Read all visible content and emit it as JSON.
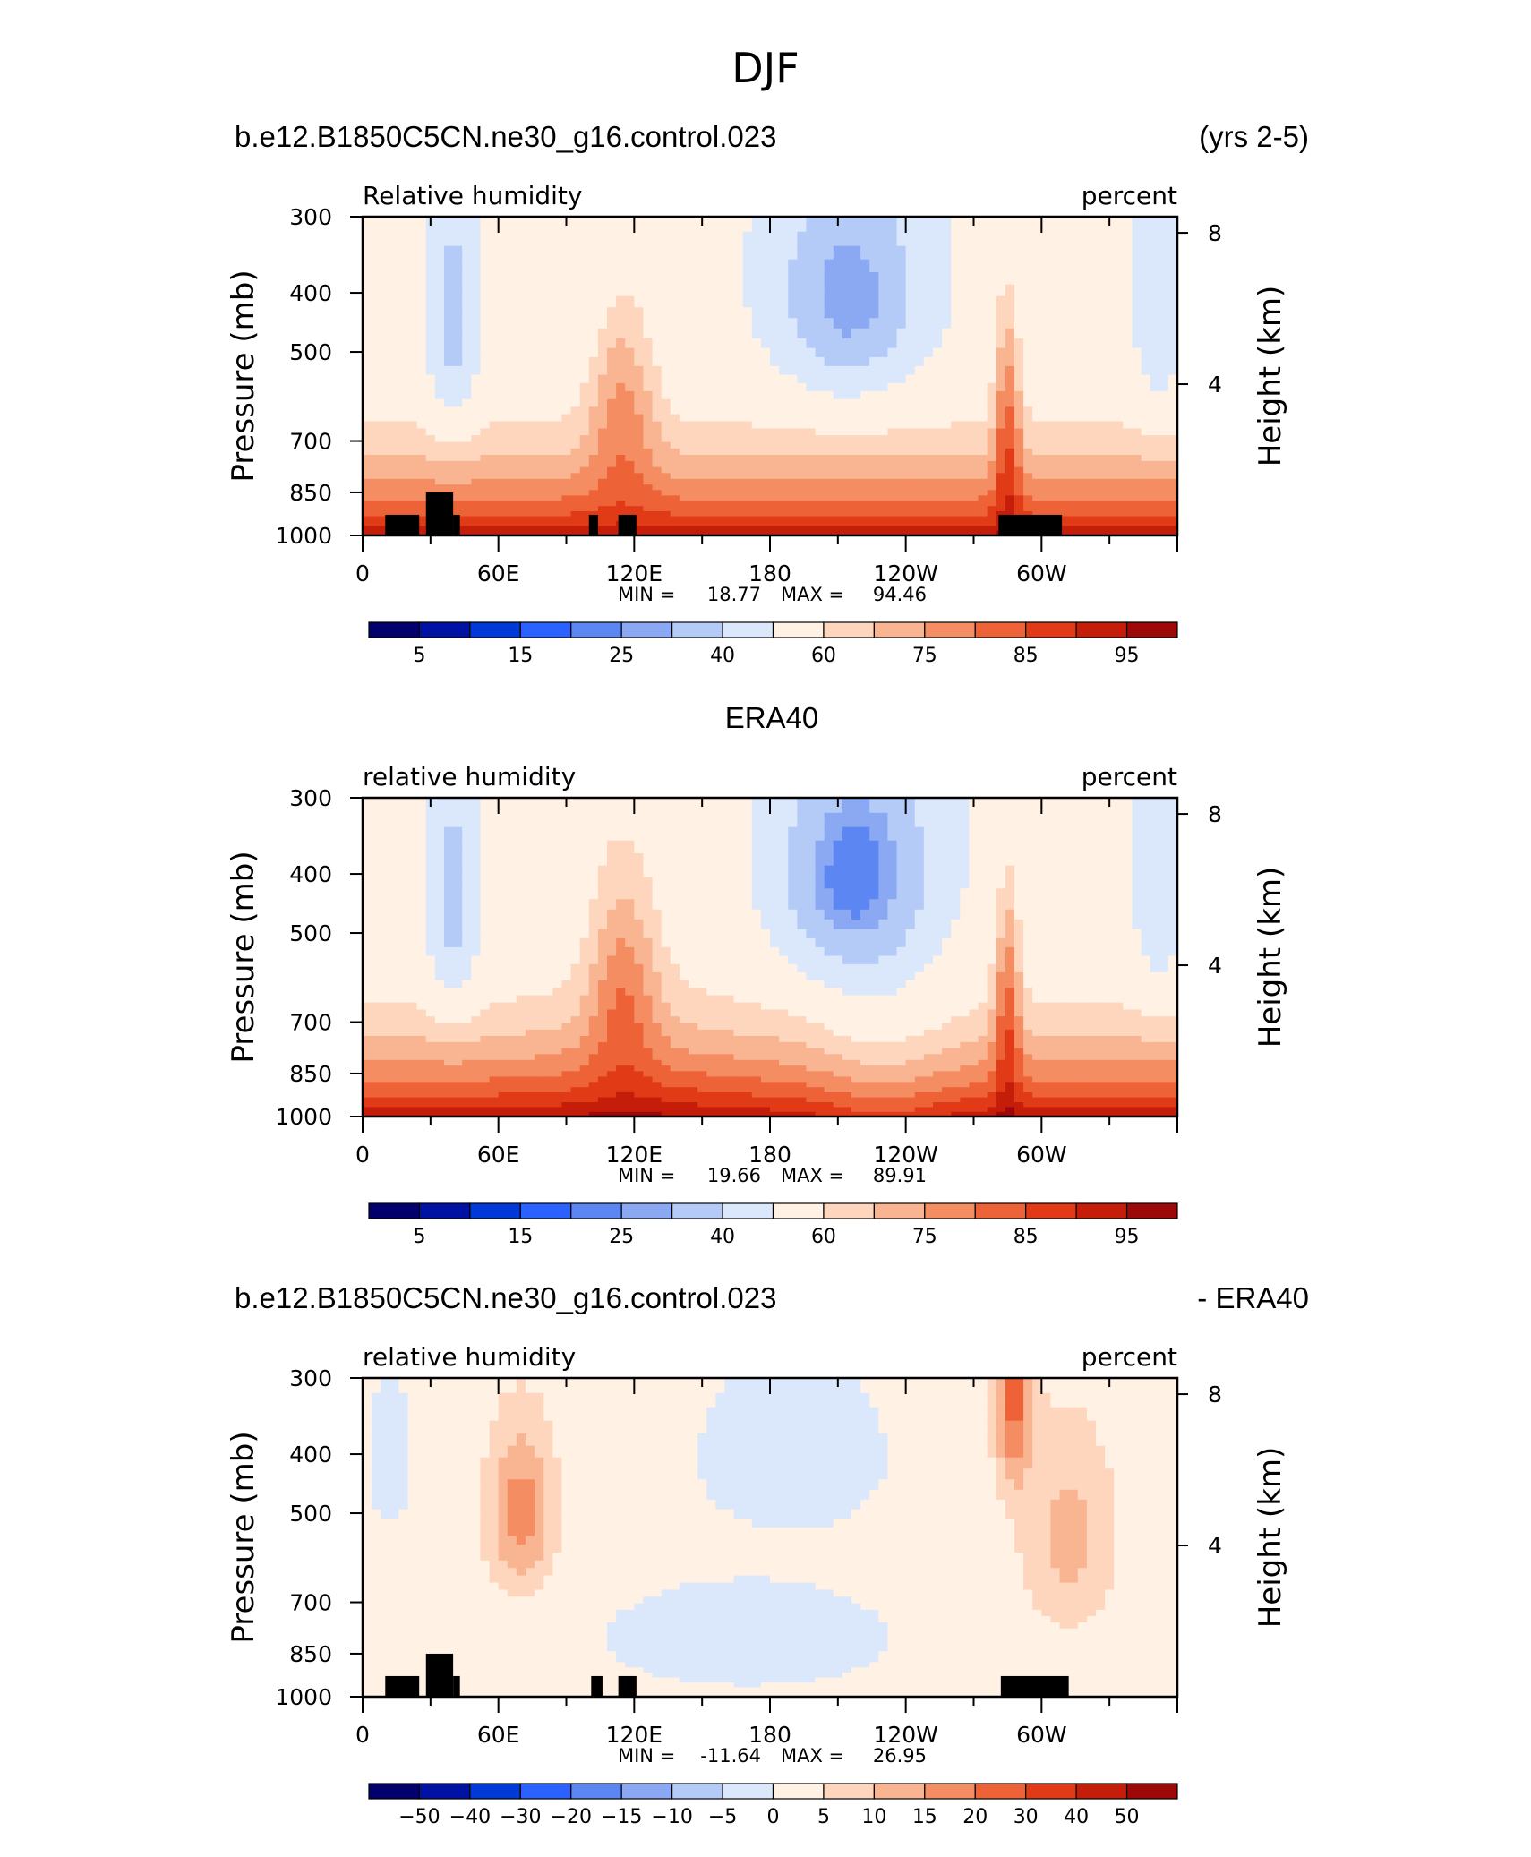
{
  "figure": {
    "title": "DJF",
    "colors": {
      "rh": [
        "#03006d",
        "#0012a4",
        "#0039d6",
        "#2b62ff",
        "#5c86f2",
        "#8aa9f2",
        "#b5cbf7",
        "#dbe8fc",
        "#fff1e4",
        "#fdd6bd",
        "#f9b592",
        "#f58d63",
        "#ed6337",
        "#e03a17",
        "#c41e0b",
        "#9d0808"
      ],
      "diff": [
        "#03006d",
        "#0012a4",
        "#0039d6",
        "#2b62ff",
        "#5c86f2",
        "#8aa9f2",
        "#b5cbf7",
        "#dbe8fc",
        "#fff1e4",
        "#fdd6bd",
        "#f9b592",
        "#f58d63",
        "#ed6337",
        "#e03a17",
        "#c41e0b",
        "#9d0808"
      ],
      "terrain": "#000000"
    }
  },
  "chart_data": [
    {
      "type": "heatmap",
      "left_title": "b.e12.B1850C5CN.ne30_g16.control.023",
      "right_title": "(yrs 2-5)",
      "center_title": "",
      "variable": "Relative humidity",
      "units": "percent",
      "ylabel": "Pressure (mb)",
      "ylabel_right": "Height (km)",
      "y_ticks": [
        "300",
        "400",
        "500",
        "700",
        "850",
        "1000"
      ],
      "y_right_ticks": [
        "8",
        "4"
      ],
      "x_ticks": [
        "0",
        "60E",
        "120E",
        "180",
        "120W",
        "60W"
      ],
      "x_range": [
        0,
        360
      ],
      "min_label": "MIN =",
      "min_value": "18.77",
      "max_label": "MAX =",
      "max_value": "94.46",
      "colorbar_labels": [
        "5",
        "15",
        "25",
        "40",
        "60",
        "75",
        "85",
        "95"
      ],
      "terrain_blocks": [
        [
          10,
          25,
          925
        ],
        [
          28,
          40,
          850
        ],
        [
          40,
          43,
          925
        ],
        [
          100,
          104,
          925
        ],
        [
          113,
          121,
          925
        ],
        [
          281,
          309,
          925
        ]
      ]
    },
    {
      "type": "heatmap",
      "left_title": "",
      "right_title": "",
      "center_title": "ERA40",
      "variable": "relative humidity",
      "units": "percent",
      "ylabel": "Pressure (mb)",
      "ylabel_right": "Height (km)",
      "y_ticks": [
        "300",
        "400",
        "500",
        "700",
        "850",
        "1000"
      ],
      "y_right_ticks": [
        "8",
        "4"
      ],
      "x_ticks": [
        "0",
        "60E",
        "120E",
        "180",
        "120W",
        "60W"
      ],
      "x_range": [
        0,
        360
      ],
      "min_label": "MIN =",
      "min_value": "19.66",
      "max_label": "MAX =",
      "max_value": "89.91",
      "colorbar_labels": [
        "5",
        "15",
        "25",
        "40",
        "60",
        "75",
        "85",
        "95"
      ],
      "terrain_blocks": []
    },
    {
      "type": "heatmap",
      "left_title": "b.e12.B1850C5CN.ne30_g16.control.023",
      "right_title": "- ERA40",
      "center_title": "",
      "variable": "relative humidity",
      "units": "percent",
      "ylabel": "Pressure (mb)",
      "ylabel_right": "Height (km)",
      "y_ticks": [
        "300",
        "400",
        "500",
        "700",
        "850",
        "1000"
      ],
      "y_right_ticks": [
        "8",
        "4"
      ],
      "x_ticks": [
        "0",
        "60E",
        "120E",
        "180",
        "120W",
        "60W"
      ],
      "x_range": [
        0,
        360
      ],
      "min_label": "MIN =",
      "min_value": "-11.64",
      "max_label": "MAX =",
      "max_value": "26.95",
      "colorbar_labels": [
        "−50",
        "−40",
        "−30",
        "−20",
        "−15",
        "−10",
        "−5",
        "0",
        "5",
        "10",
        "15",
        "20",
        "30",
        "40",
        "50"
      ],
      "terrain_blocks": [
        [
          10,
          25,
          925
        ],
        [
          28,
          40,
          850
        ],
        [
          40,
          43,
          925
        ],
        [
          101,
          106,
          925
        ],
        [
          113,
          121,
          925
        ],
        [
          282,
          312,
          925
        ]
      ]
    }
  ]
}
